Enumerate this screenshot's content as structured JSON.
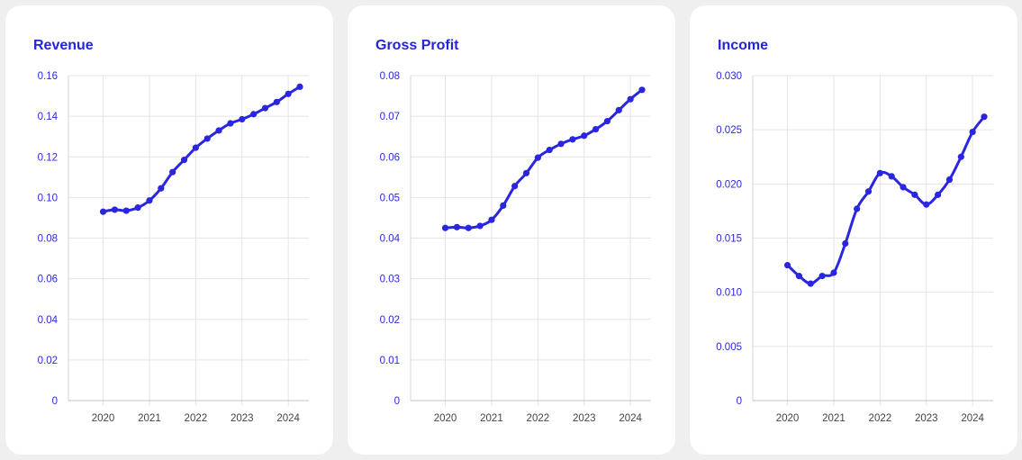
{
  "colors": {
    "accent": "#2a25e0",
    "title": "#2424d8",
    "grid": "#e4e4e4",
    "background": "#efefef",
    "card": "#ffffff"
  },
  "chart_data": [
    {
      "type": "line",
      "title": "Revenue",
      "x": [
        2020.0,
        2020.25,
        2020.5,
        2020.75,
        2021.0,
        2021.25,
        2021.5,
        2021.75,
        2022.0,
        2022.25,
        2022.5,
        2022.75,
        2023.0,
        2023.25,
        2023.5,
        2023.75,
        2024.0,
        2024.25
      ],
      "series": [
        {
          "values": [
            0.093,
            0.094,
            0.0935,
            0.095,
            0.0985,
            0.1045,
            0.1125,
            0.1185,
            0.1245,
            0.129,
            0.133,
            0.1365,
            0.1385,
            0.141,
            0.144,
            0.147,
            0.151,
            0.1545
          ]
        }
      ],
      "xticks": [
        2020,
        2021,
        2022,
        2023,
        2024
      ],
      "xtick_labels": [
        "2020",
        "2021",
        "2022",
        "2023",
        "2024"
      ],
      "ylim": [
        0,
        0.16
      ],
      "yticks": [
        0,
        0.02,
        0.04,
        0.06,
        0.08,
        0.1,
        0.12,
        0.14,
        0.16
      ],
      "ytick_labels": [
        "0",
        "0.02",
        "0.04",
        "0.06",
        "0.08",
        "0.10",
        "0.12",
        "0.14",
        "0.16"
      ],
      "xlim": [
        2019.25,
        2024.25
      ],
      "grid": true
    },
    {
      "type": "line",
      "title": "Gross Profit",
      "x": [
        2020.0,
        2020.25,
        2020.5,
        2020.75,
        2021.0,
        2021.25,
        2021.5,
        2021.75,
        2022.0,
        2022.25,
        2022.5,
        2022.75,
        2023.0,
        2023.25,
        2023.5,
        2023.75,
        2024.0,
        2024.25
      ],
      "series": [
        {
          "values": [
            0.0425,
            0.0427,
            0.0425,
            0.043,
            0.0445,
            0.048,
            0.0528,
            0.056,
            0.0598,
            0.0617,
            0.0632,
            0.0643,
            0.0652,
            0.0668,
            0.0688,
            0.0715,
            0.0742,
            0.0765
          ]
        }
      ],
      "xticks": [
        2020,
        2021,
        2022,
        2023,
        2024
      ],
      "xtick_labels": [
        "2020",
        "2021",
        "2022",
        "2023",
        "2024"
      ],
      "ylim": [
        0,
        0.08
      ],
      "yticks": [
        0,
        0.01,
        0.02,
        0.03,
        0.04,
        0.05,
        0.06,
        0.07,
        0.08
      ],
      "ytick_labels": [
        "0",
        "0.01",
        "0.02",
        "0.03",
        "0.04",
        "0.05",
        "0.06",
        "0.07",
        "0.08"
      ],
      "xlim": [
        2019.25,
        2024.25
      ],
      "grid": true
    },
    {
      "type": "line",
      "title": "Income",
      "x": [
        2020.0,
        2020.25,
        2020.5,
        2020.75,
        2021.0,
        2021.25,
        2021.5,
        2021.75,
        2022.0,
        2022.25,
        2022.5,
        2022.75,
        2023.0,
        2023.25,
        2023.5,
        2023.75,
        2024.0,
        2024.25
      ],
      "series": [
        {
          "values": [
            0.0125,
            0.0115,
            0.0108,
            0.0115,
            0.0118,
            0.0145,
            0.0177,
            0.0193,
            0.021,
            0.0207,
            0.0197,
            0.019,
            0.0181,
            0.019,
            0.0204,
            0.0225,
            0.0248,
            0.0262
          ]
        }
      ],
      "xticks": [
        2020,
        2021,
        2022,
        2023,
        2024
      ],
      "xtick_labels": [
        "2020",
        "2021",
        "2022",
        "2023",
        "2024"
      ],
      "ylim": [
        0,
        0.03
      ],
      "yticks": [
        0,
        0.005,
        0.01,
        0.015,
        0.02,
        0.025,
        0.03
      ],
      "ytick_labels": [
        "0",
        "0.005",
        "0.010",
        "0.015",
        "0.020",
        "0.025",
        "0.030"
      ],
      "xlim": [
        2019.25,
        2024.25
      ],
      "grid": true
    }
  ]
}
